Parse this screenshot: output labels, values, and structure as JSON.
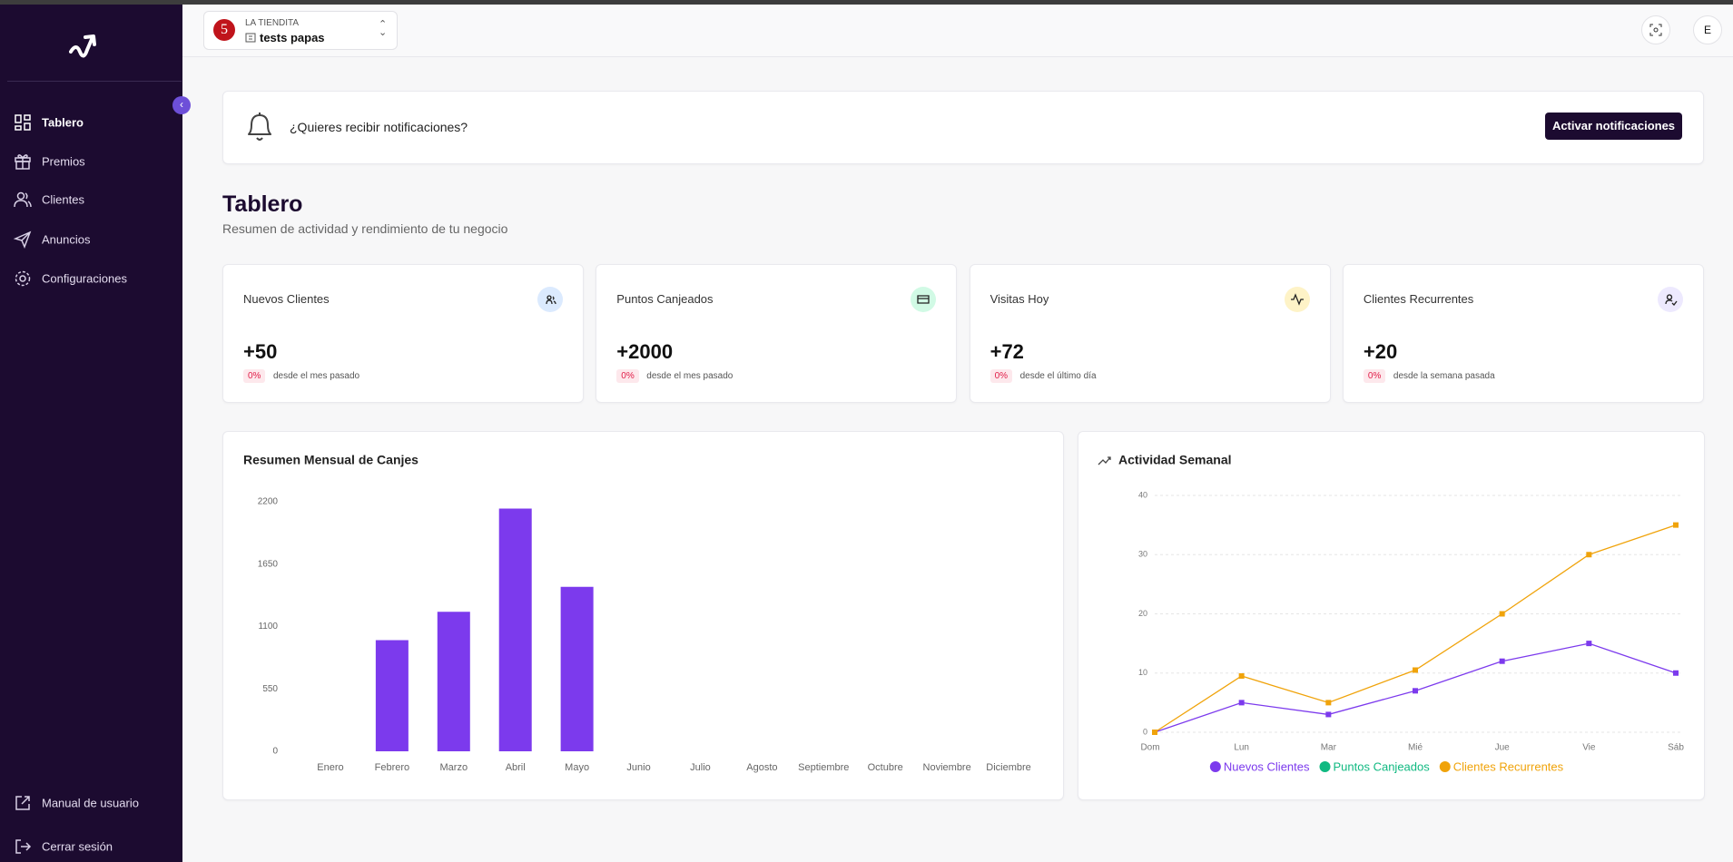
{
  "sidebar": {
    "nav": [
      "Tablero",
      "Premios",
      "Clientes",
      "Anuncios",
      "Configuraciones"
    ],
    "footer": [
      "Manual de usuario",
      "Cerrar sesión"
    ]
  },
  "header": {
    "logo": "5",
    "store_name": "LA TIENDITA",
    "branch": "tests papas",
    "avatar": "E"
  },
  "notification": {
    "text": "¿Quieres recibir notificaciones?",
    "button": "Activar notificaciones"
  },
  "page": {
    "title": "Tablero",
    "subtitle": "Resumen de actividad y rendimiento de tu negocio"
  },
  "stats": [
    {
      "label": "Nuevos Clientes",
      "value": "+50",
      "change": "0%",
      "note": "desde el mes pasado"
    },
    {
      "label": "Puntos Canjeados",
      "value": "+2000",
      "change": "0%",
      "note": "desde el mes pasado"
    },
    {
      "label": "Visitas Hoy",
      "value": "+72",
      "change": "0%",
      "note": "desde el último día"
    },
    {
      "label": "Clientes Recurrentes",
      "value": "+20",
      "change": "0%",
      "note": "desde la semana pasada"
    }
  ],
  "chart_data": [
    {
      "type": "bar",
      "title": "Resumen Mensual de Canjes",
      "categories": [
        "Enero",
        "Febrero",
        "Marzo",
        "Abril",
        "Mayo",
        "Junio",
        "Julio",
        "Agosto",
        "Septiembre",
        "Octubre",
        "Noviembre",
        "Diciembre"
      ],
      "values": [
        0,
        980,
        1230,
        2140,
        1450,
        0,
        0,
        0,
        0,
        0,
        0,
        0
      ],
      "color": "#7c3aed",
      "ylim": [
        0,
        2200
      ],
      "yticks": [
        0,
        550,
        1100,
        1650,
        2200
      ],
      "grid": false
    },
    {
      "type": "line",
      "title": "Actividad Semanal",
      "categories": [
        "Dom",
        "Lun",
        "Mar",
        "Mié",
        "Jue",
        "Vie",
        "Sáb"
      ],
      "series": [
        {
          "name": "Nuevos Clientes",
          "color": "#7c3aed",
          "values": [
            0,
            5,
            3,
            7,
            12,
            15,
            10
          ]
        },
        {
          "name": "Puntos Canjeados",
          "color": "#10b981",
          "values": [
            null,
            null,
            null,
            null,
            null,
            null,
            null
          ]
        },
        {
          "name": "Clientes Recurrentes",
          "color": "#f0a30a",
          "values": [
            0,
            9.5,
            5,
            10.5,
            20,
            30,
            35
          ]
        }
      ],
      "ylim": [
        0,
        40
      ],
      "yticks": [
        0,
        10,
        20,
        30,
        40
      ],
      "grid": true,
      "legend": "bottom"
    }
  ]
}
